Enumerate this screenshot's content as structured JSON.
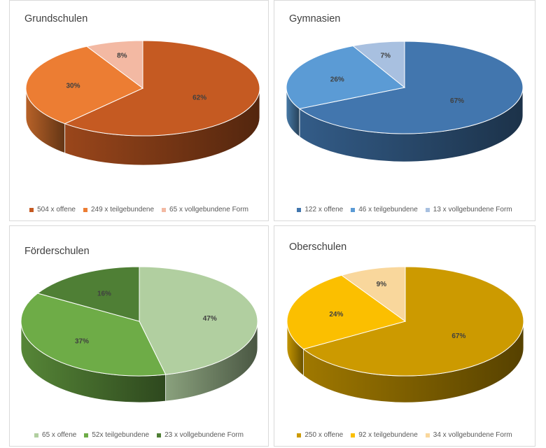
{
  "chart_data": [
    {
      "type": "pie",
      "title": "Grundschulen",
      "categories": [
        "504 x offene",
        "249 x teilgebundene",
        "65 x vollgebundene Form"
      ],
      "values": [
        504,
        249,
        65
      ],
      "labels": [
        "62%",
        "30%",
        "8%"
      ],
      "colors": [
        "#c55a22",
        "#ec7d33",
        "#f3b9a3"
      ],
      "legend": "bottom"
    },
    {
      "type": "pie",
      "title": "Gymnasien",
      "categories": [
        "122 x offene",
        "46 x teilgebundene",
        "13 x vollgebundene Form"
      ],
      "values": [
        122,
        46,
        13
      ],
      "labels": [
        "67%",
        "26%",
        "7%"
      ],
      "colors": [
        "#4276ae",
        "#5b9bd5",
        "#a8c0e0"
      ],
      "legend": "bottom"
    },
    {
      "type": "pie",
      "title": "Förderschulen",
      "categories": [
        "65 x offene",
        "52x teilgebundene",
        "23 x vollgebundene Form"
      ],
      "values": [
        65,
        52,
        23
      ],
      "labels": [
        "47%",
        "37%",
        "16%"
      ],
      "colors": [
        "#b1cfa0",
        "#6eac47",
        "#4f7f35"
      ],
      "legend": "bottom"
    },
    {
      "type": "pie",
      "title": "Oberschulen",
      "categories": [
        "250 x offene",
        "92 x teilgebundene",
        "34 x vollgebundene Form"
      ],
      "values": [
        250,
        92,
        34
      ],
      "labels": [
        "67%",
        "24%",
        "9%"
      ],
      "colors": [
        "#cc9a00",
        "#fbbf00",
        "#f9d79c"
      ],
      "legend": "bottom"
    }
  ]
}
